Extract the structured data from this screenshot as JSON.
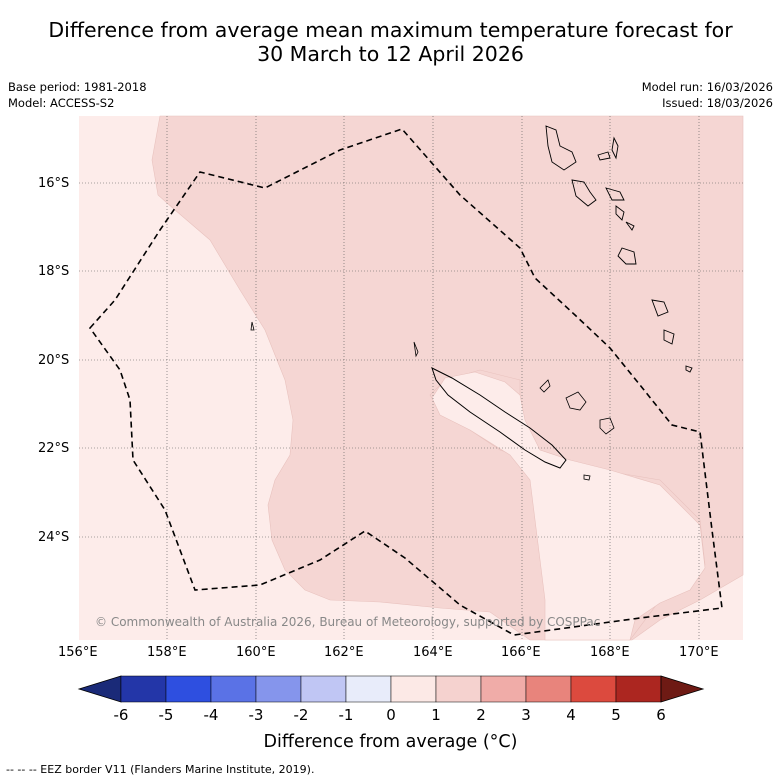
{
  "title": {
    "line1": "Difference from average mean maximum temperature forecast for",
    "line2": "30 March to 12 April 2026"
  },
  "meta": {
    "base_period": "Base period: 1981-2018",
    "model": "Model: ACCESS-S2",
    "model_run": "Model run: 16/03/2026",
    "issued": "Issued: 18/03/2026"
  },
  "map": {
    "lon_range": [
      156,
      171
    ],
    "lat_range": [
      -26.1,
      -14.3
    ],
    "lat_ticks": [
      {
        "value": -16,
        "label": "16°S"
      },
      {
        "value": -18,
        "label": "18°S"
      },
      {
        "value": -20,
        "label": "20°S"
      },
      {
        "value": -22,
        "label": "22°S"
      },
      {
        "value": -24,
        "label": "24°S"
      }
    ],
    "lon_ticks": [
      {
        "value": 156,
        "label": "156°E"
      },
      {
        "value": 158,
        "label": "158°E"
      },
      {
        "value": 160,
        "label": "160°E"
      },
      {
        "value": 162,
        "label": "162°E"
      },
      {
        "value": 164,
        "label": "164°E"
      },
      {
        "value": 166,
        "label": "166°E"
      },
      {
        "value": 168,
        "label": "168°E"
      },
      {
        "value": 170,
        "label": "170°E"
      }
    ],
    "copyright": "© Commonwealth of Australia 2026, Bureau of Meteorology, supported by COSPPac"
  },
  "colorbar": {
    "ticks": [
      "-6",
      "-5",
      "-4",
      "-3",
      "-2",
      "-1",
      "0",
      "1",
      "2",
      "3",
      "4",
      "5",
      "6"
    ],
    "colors": [
      "#2336a8",
      "#2e4fe0",
      "#5a72e6",
      "#8595ec",
      "#c0c6f4",
      "#e8ecfa",
      "#fce9e6",
      "#f5d2cf",
      "#f0aca8",
      "#e8847c",
      "#dc4a3e",
      "#ac2620"
    ],
    "under_color": "#1a2a78",
    "over_color": "#6e1a14",
    "label": "Difference from average (°C)"
  },
  "legend": {
    "footnote": "--  --  -- EEZ border V11 (Flanders Marine Institute, 2019)."
  }
}
